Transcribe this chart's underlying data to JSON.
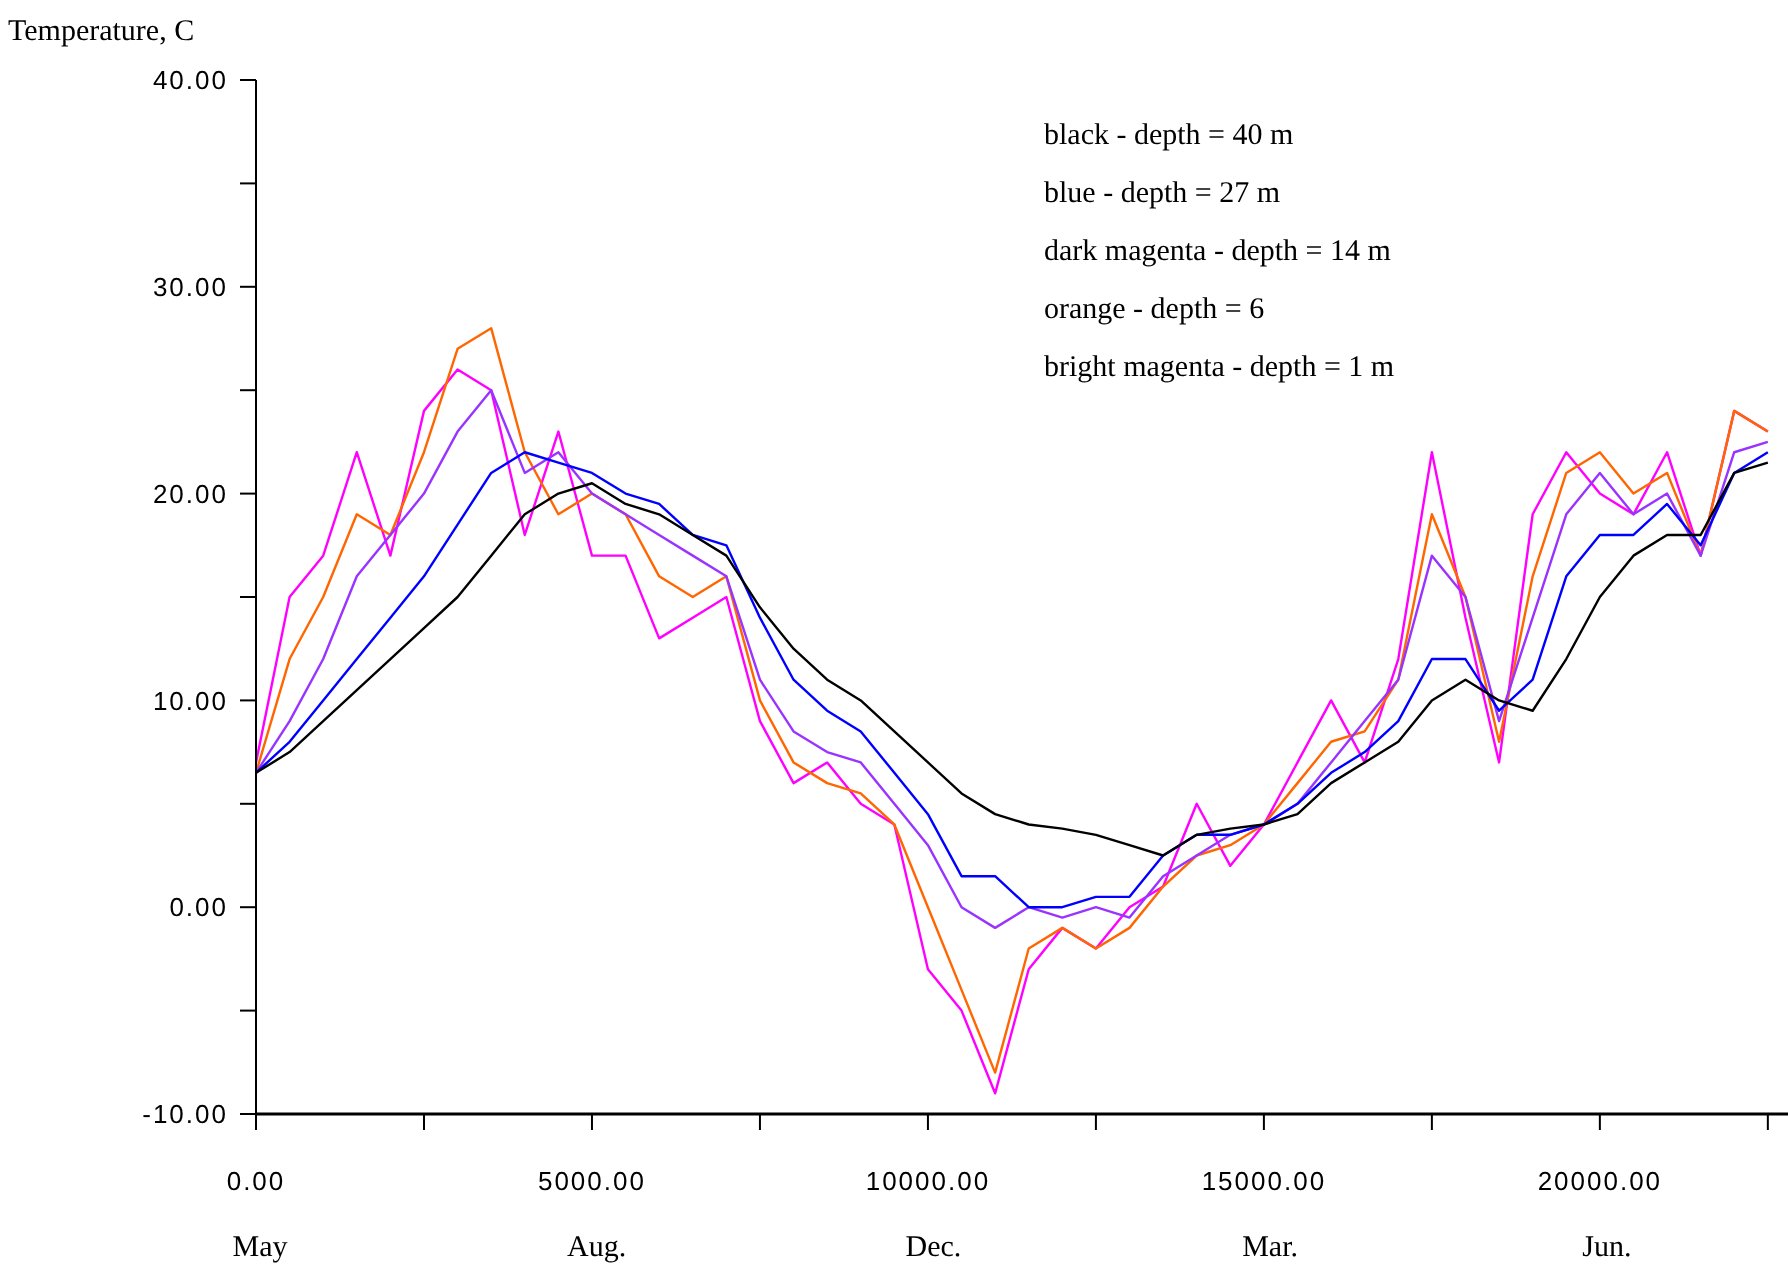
{
  "chart_data": {
    "type": "line",
    "ylabel": "Temperature, C",
    "x": [
      0,
      500,
      1000,
      1500,
      2000,
      2500,
      3000,
      3500,
      4000,
      4500,
      5000,
      5500,
      6000,
      6500,
      7000,
      7500,
      8000,
      8500,
      9000,
      9500,
      10000,
      10500,
      11000,
      11500,
      12000,
      12500,
      13000,
      13500,
      14000,
      14500,
      15000,
      15500,
      16000,
      16500,
      17000,
      17500,
      18000,
      18500,
      19000,
      19500,
      20000,
      20500,
      21000,
      21500,
      22000,
      22500
    ],
    "series": [
      {
        "color": "#ff00ff",
        "values": [
          7,
          15,
          17,
          22,
          17,
          24,
          26,
          25,
          18,
          23,
          17,
          17,
          13,
          14,
          15,
          9,
          6,
          7,
          5,
          4,
          -3,
          -5,
          -9,
          -3,
          -1,
          -2,
          0,
          1,
          5,
          2,
          4,
          7,
          10,
          7,
          12,
          22,
          14,
          7,
          19,
          22,
          20,
          19,
          22,
          17,
          24,
          23
        ]
      },
      {
        "color": "#ff6600",
        "values": [
          6.5,
          12,
          15,
          19,
          18,
          22,
          27,
          28,
          22,
          19,
          20,
          19,
          16,
          15,
          16,
          10,
          7,
          6,
          5.5,
          4,
          0,
          -4,
          -8,
          -2,
          -1,
          -2,
          -1,
          1,
          2.5,
          3,
          4,
          6,
          8,
          8.5,
          11,
          19,
          15,
          8,
          16,
          21,
          22,
          20,
          21,
          17,
          24,
          23
        ]
      },
      {
        "color": "#9933ff",
        "values": [
          6.5,
          9,
          12,
          16,
          18,
          20,
          23,
          25,
          21,
          22,
          20,
          19,
          18,
          17,
          16,
          11,
          8.5,
          7.5,
          7,
          5,
          3,
          0,
          -1,
          0,
          -0.5,
          0,
          -0.5,
          1.5,
          2.5,
          3.5,
          4,
          5,
          7,
          9,
          11,
          17,
          15,
          9,
          14,
          19,
          21,
          19,
          20,
          17,
          22,
          22.5
        ]
      },
      {
        "color": "#0000ff",
        "values": [
          6.5,
          8,
          10,
          12,
          14,
          16,
          18.5,
          21,
          22,
          21.5,
          21,
          20,
          19.5,
          18,
          17.5,
          14,
          11,
          9.5,
          8.5,
          6.5,
          4.5,
          1.5,
          1.5,
          0,
          0,
          0.5,
          0.5,
          2.5,
          3.5,
          3.5,
          4,
          5,
          6.5,
          7.5,
          9,
          12,
          12,
          9.5,
          11,
          16,
          18,
          18,
          19.5,
          17.5,
          21,
          22
        ]
      },
      {
        "color": "#000000",
        "values": [
          6.5,
          7.5,
          9,
          10.5,
          12,
          13.5,
          15,
          17,
          19,
          20,
          20.5,
          19.5,
          19,
          18,
          17,
          14.5,
          12.5,
          11,
          10,
          8.5,
          7,
          5.5,
          4.5,
          4,
          3.8,
          3.5,
          3,
          2.5,
          3.5,
          3.8,
          4,
          4.5,
          6,
          7,
          8,
          10,
          11,
          10,
          9.5,
          12,
          15,
          17,
          18,
          18,
          21,
          21.5
        ]
      }
    ],
    "xlim": [
      0,
      22800
    ],
    "xticks": [
      {
        "value": 0,
        "label": "0.00"
      },
      {
        "value": 2500,
        "label": null
      },
      {
        "value": 5000,
        "label": "5000.00"
      },
      {
        "value": 7500,
        "label": null
      },
      {
        "value": 10000,
        "label": "10000.00"
      },
      {
        "value": 12500,
        "label": null
      },
      {
        "value": 15000,
        "label": "15000.00"
      },
      {
        "value": 17500,
        "label": null
      },
      {
        "value": 20000,
        "label": "20000.00"
      },
      {
        "value": 22500,
        "label": null
      }
    ],
    "ylim": [
      -10,
      40
    ],
    "yticks": [
      {
        "value": -10,
        "label": "-10.00"
      },
      {
        "value": -5,
        "label": null
      },
      {
        "value": 0,
        "label": "0.00"
      },
      {
        "value": 5,
        "label": null
      },
      {
        "value": 10,
        "label": "10.00"
      },
      {
        "value": 15,
        "label": null
      },
      {
        "value": 20,
        "label": "20.00"
      },
      {
        "value": 25,
        "label": null
      },
      {
        "value": 30,
        "label": "30.00"
      },
      {
        "value": 35,
        "label": null
      },
      {
        "value": 40,
        "label": "40.00"
      }
    ],
    "grid": false,
    "marker": "none",
    "line_style": "solid",
    "annotations": [
      "black - depth = 40 m",
      "blue - depth = 27 m",
      "dark magenta - depth = 14 m",
      "orange - depth = 6",
      "bright magenta - depth = 1 m",
      "May",
      "Aug.",
      "Dec.",
      "Mar.",
      "Jun."
    ]
  }
}
